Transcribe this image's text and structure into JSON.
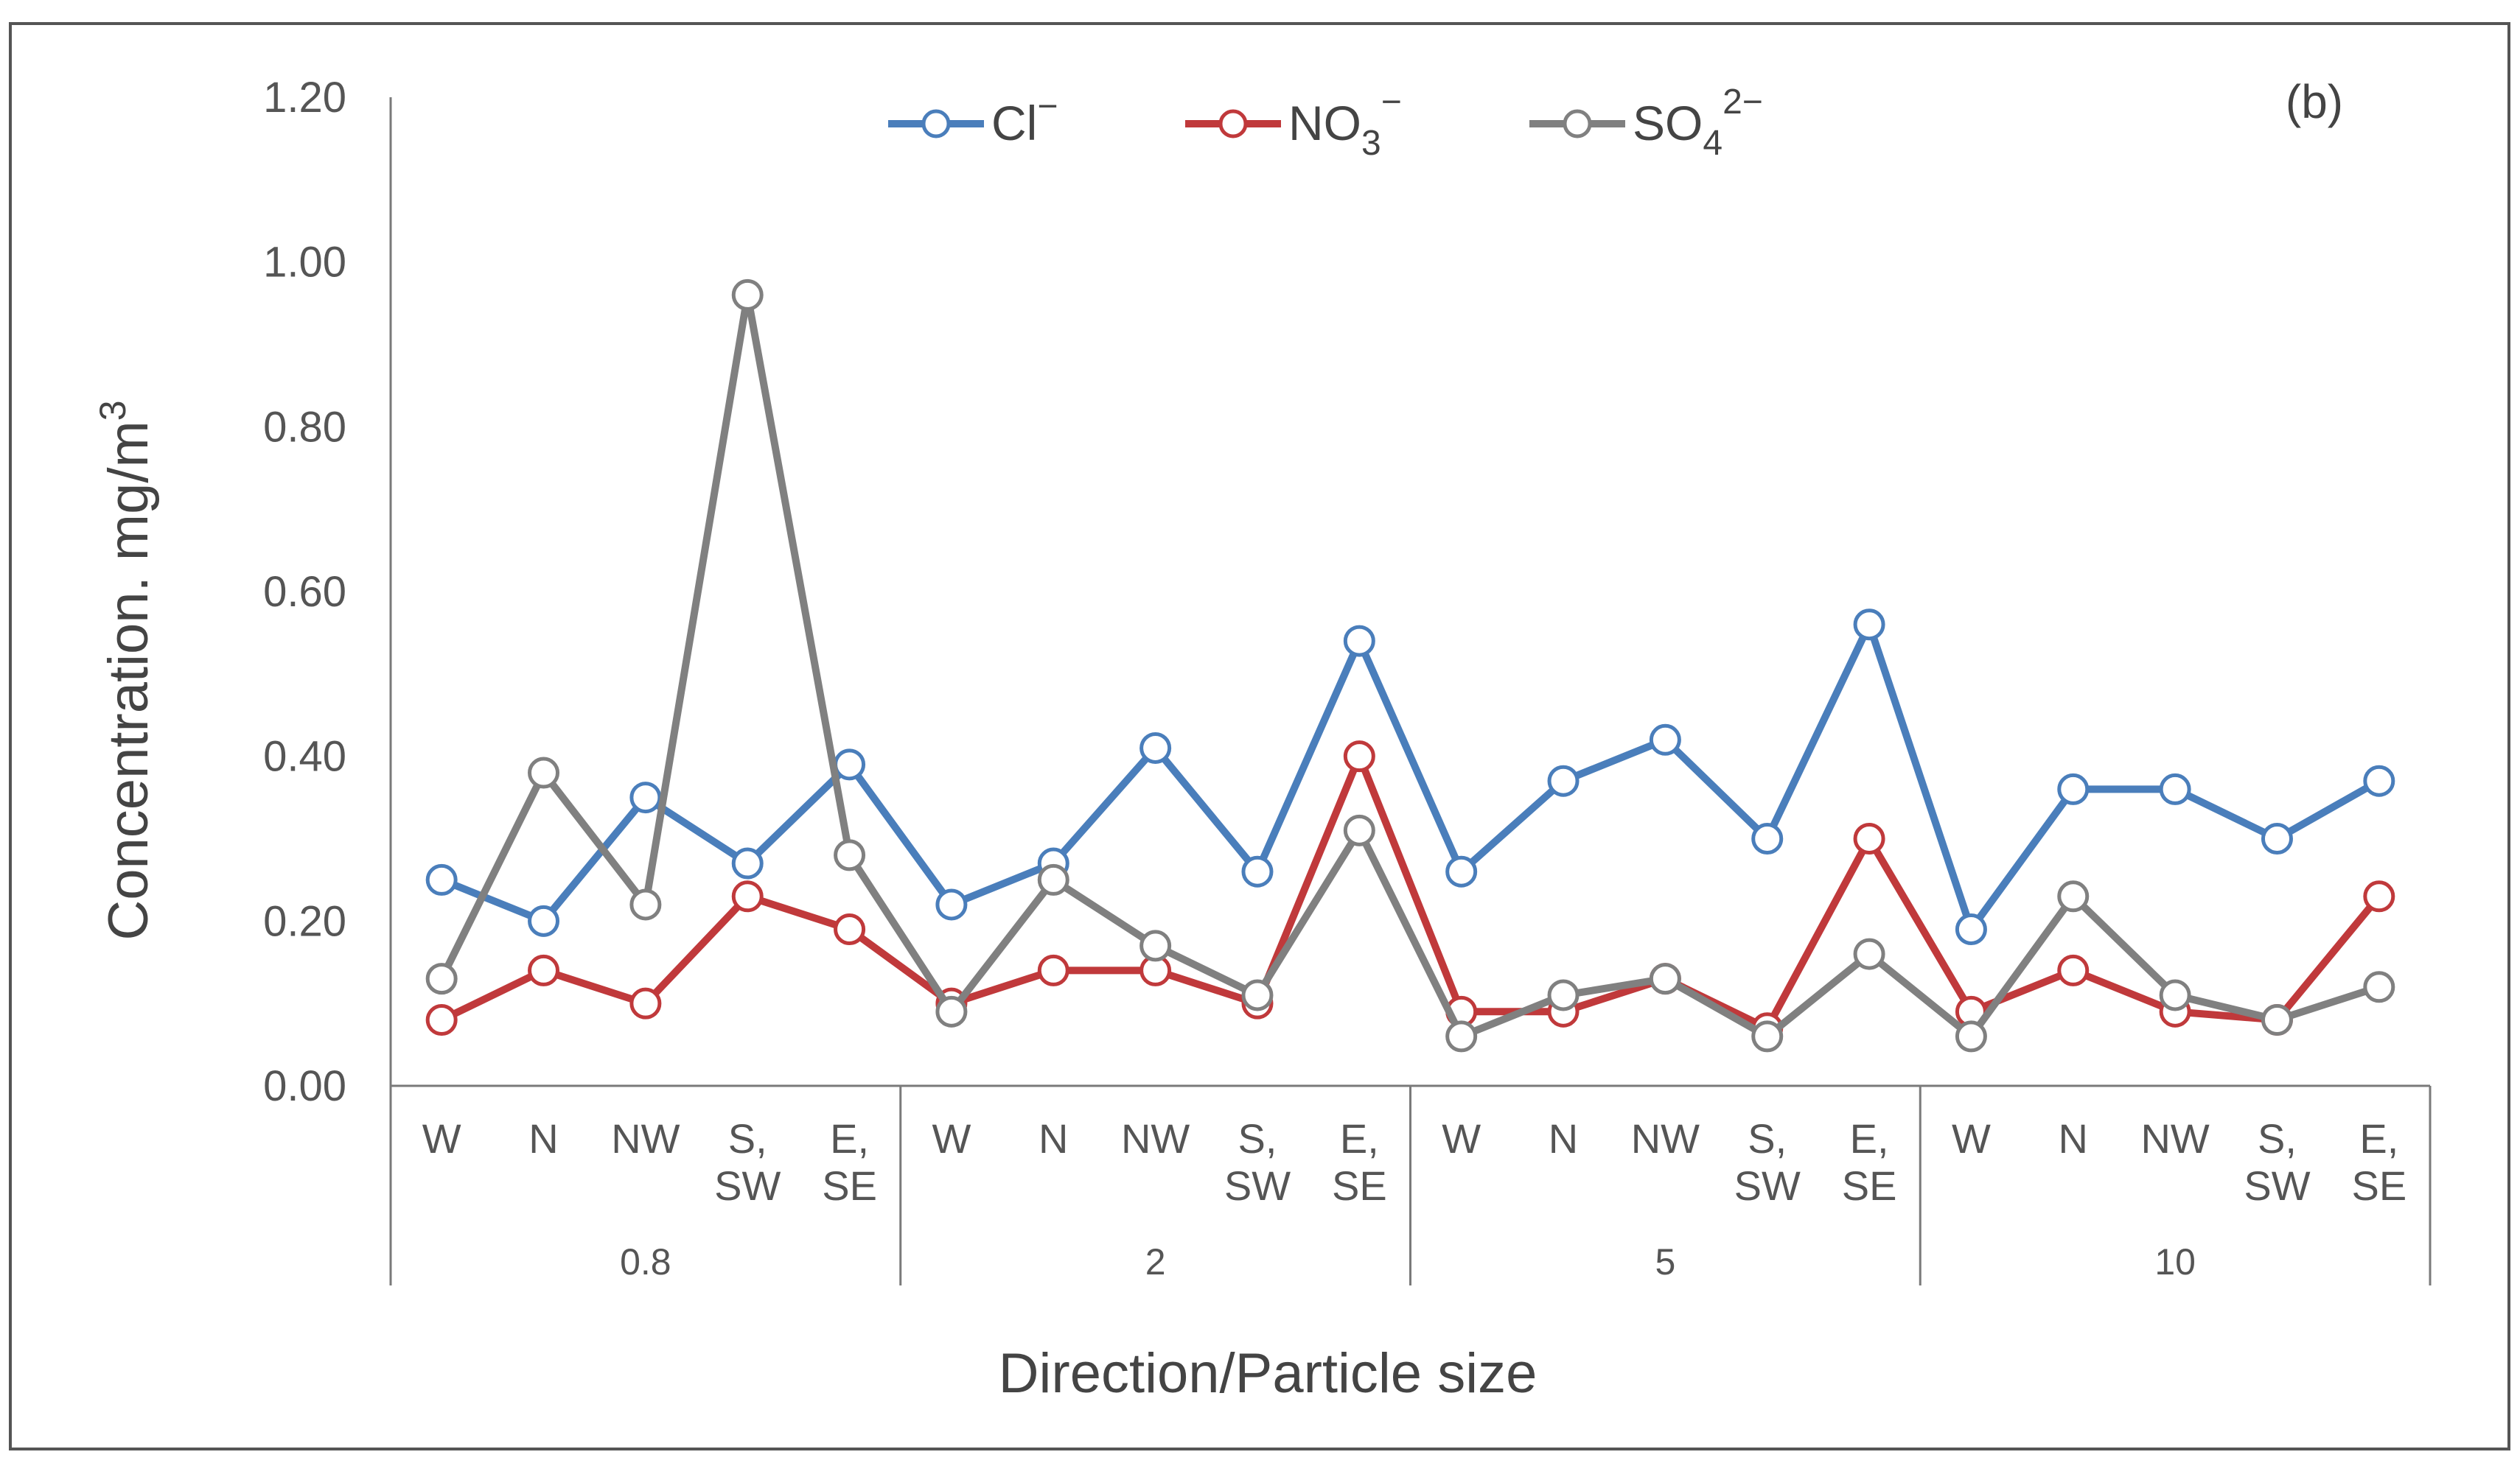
{
  "chart_data": {
    "type": "line",
    "panel_label": "(b)",
    "xlabel": "Direction/Particle size",
    "ylabel": "Concentration. mg/m³",
    "ylim": [
      0,
      1.2
    ],
    "yticks": [
      "0.00",
      "0.20",
      "0.40",
      "0.60",
      "0.80",
      "1.00",
      "1.20"
    ],
    "grid": false,
    "legend_position": "top",
    "groups": [
      {
        "label": "0.8",
        "categories": [
          "W",
          "N",
          "NW",
          "S, SW",
          "E, SE"
        ]
      },
      {
        "label": "2",
        "categories": [
          "W",
          "N",
          "NW",
          "S, SW",
          "E, SE"
        ]
      },
      {
        "label": "5",
        "categories": [
          "W",
          "N",
          "NW",
          "S, SW",
          "E, SE"
        ]
      },
      {
        "label": "10",
        "categories": [
          "W",
          "N",
          "NW",
          "S, SW",
          "E, SE"
        ]
      }
    ],
    "series": [
      {
        "name": "Cl⁻",
        "base": "Cl",
        "sub": "",
        "sup": "−",
        "color": "#4a7ebb",
        "values": [
          0.25,
          0.2,
          0.35,
          0.27,
          0.39,
          0.22,
          0.27,
          0.41,
          0.26,
          0.54,
          0.26,
          0.37,
          0.42,
          0.3,
          0.56,
          0.19,
          0.36,
          0.36,
          0.3,
          0.37
        ]
      },
      {
        "name": "NO₃⁻",
        "base": "NO",
        "sub": "3",
        "sup": "−",
        "color": "#c0393b",
        "values": [
          0.08,
          0.14,
          0.1,
          0.23,
          0.19,
          0.1,
          0.14,
          0.14,
          0.1,
          0.4,
          0.09,
          0.09,
          0.13,
          0.07,
          0.3,
          0.09,
          0.14,
          0.09,
          0.08,
          0.23
        ]
      },
      {
        "name": "SO₄²⁻",
        "base": "SO",
        "sub": "4",
        "sup": "2−",
        "color": "#808080",
        "values": [
          0.13,
          0.38,
          0.22,
          0.96,
          0.28,
          0.09,
          0.25,
          0.17,
          0.11,
          0.31,
          0.06,
          0.11,
          0.13,
          0.06,
          0.16,
          0.06,
          0.23,
          0.11,
          0.08,
          0.12
        ]
      }
    ]
  }
}
